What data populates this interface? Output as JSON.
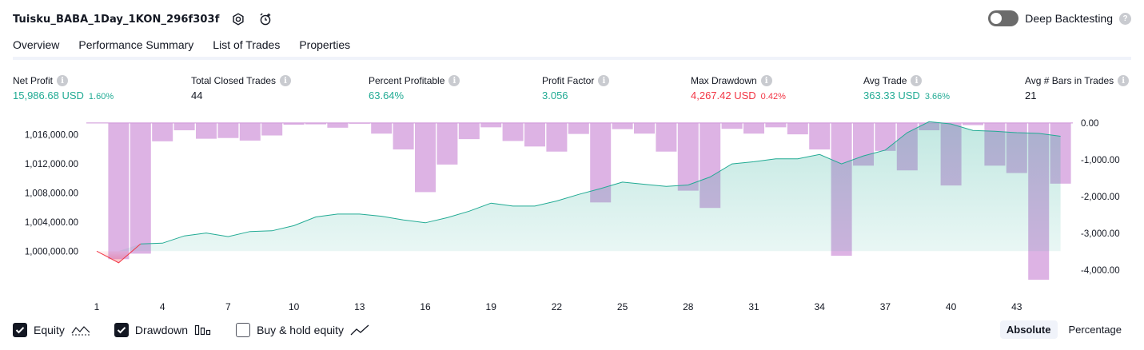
{
  "header": {
    "title": "Tuisku_BABA_1Day_1KON_296f303f",
    "deep_backtesting_label": "Deep Backtesting",
    "deep_backtesting_enabled": false
  },
  "tabs": [
    {
      "label": "Overview",
      "active": true
    },
    {
      "label": "Performance Summary",
      "active": false
    },
    {
      "label": "List of Trades",
      "active": false
    },
    {
      "label": "Properties",
      "active": false
    }
  ],
  "stats": [
    {
      "label": "Net Profit",
      "value": "15,986.68 USD",
      "pct": "1.60%",
      "color": "#22ab94"
    },
    {
      "label": "Total Closed Trades",
      "value": "44",
      "pct": "",
      "color": "#131722"
    },
    {
      "label": "Percent Profitable",
      "value": "63.64%",
      "pct": "",
      "color": "#22ab94"
    },
    {
      "label": "Profit Factor",
      "value": "3.056",
      "pct": "",
      "color": "#22ab94"
    },
    {
      "label": "Max Drawdown",
      "value": "4,267.42 USD",
      "pct": "0.42%",
      "color": "#f23645"
    },
    {
      "label": "Avg Trade",
      "value": "363.33 USD",
      "pct": "3.66%",
      "color": "#22ab94"
    },
    {
      "label": "Avg # Bars in Trades",
      "value": "21",
      "pct": "",
      "color": "#131722"
    }
  ],
  "legend": {
    "equity_label": "Equity",
    "equity_checked": true,
    "drawdown_label": "Drawdown",
    "drawdown_checked": true,
    "buyhold_label": "Buy & hold equity",
    "buyhold_checked": false
  },
  "scale_toggle": {
    "absolute_label": "Absolute",
    "percentage_label": "Percentage",
    "selected": "Absolute"
  },
  "chart_data": {
    "type": "area",
    "x_tick_labels": [
      "1",
      "4",
      "7",
      "10",
      "13",
      "16",
      "19",
      "22",
      "25",
      "28",
      "31",
      "34",
      "37",
      "40",
      "43"
    ],
    "left_axis": {
      "ticks": [
        "1,000,000.00",
        "1,004,000.00",
        "1,008,000.00",
        "1,012,000.00",
        "1,016,000.00"
      ],
      "range": [
        998000,
        1018000
      ]
    },
    "right_axis": {
      "ticks": [
        "0.00",
        "-1,000.00",
        "-2,000.00",
        "-3,000.00",
        "-4,000.00"
      ],
      "range": [
        -4800,
        300
      ]
    },
    "series": [
      {
        "name": "Equity",
        "color": "#22ab94",
        "x": [
          1,
          2,
          3,
          4,
          5,
          6,
          7,
          8,
          9,
          10,
          11,
          12,
          13,
          14,
          15,
          16,
          17,
          18,
          19,
          20,
          21,
          22,
          23,
          24,
          25,
          26,
          27,
          28,
          29,
          30,
          31,
          32,
          33,
          34,
          35,
          36,
          37,
          38,
          39,
          40,
          41,
          42,
          43,
          44,
          45
        ],
        "values": [
          1000000,
          998400,
          1001000,
          1001100,
          1002100,
          1002500,
          1002000,
          1002700,
          1002800,
          1003500,
          1004700,
          1005100,
          1005100,
          1004800,
          1004300,
          1003900,
          1004600,
          1005500,
          1006600,
          1006200,
          1006200,
          1006900,
          1007800,
          1008600,
          1009500,
          1009200,
          1008900,
          1009100,
          1010200,
          1012000,
          1012300,
          1012700,
          1012700,
          1013300,
          1012000,
          1013100,
          1013900,
          1016300,
          1017800,
          1017500,
          1016600,
          1016500,
          1016300,
          1016200,
          1015800
        ]
      },
      {
        "name": "Drawdown",
        "color": "#ce93d8",
        "x": [
          2,
          3,
          4,
          5,
          6,
          7,
          8,
          9,
          10,
          11,
          12,
          13,
          14,
          15,
          16,
          17,
          18,
          19,
          20,
          21,
          22,
          23,
          24,
          25,
          26,
          27,
          28,
          29,
          30,
          31,
          32,
          33,
          34,
          35,
          36,
          37,
          38,
          39,
          40,
          41,
          42,
          43,
          44,
          45
        ],
        "values": [
          -3700,
          -3550,
          -500,
          -200,
          -430,
          -410,
          -480,
          -340,
          -50,
          -40,
          -130,
          -20,
          -290,
          -720,
          -1880,
          -1130,
          -440,
          -120,
          -490,
          -640,
          -780,
          -300,
          -2160,
          -170,
          -290,
          -780,
          -1840,
          -2310,
          -160,
          -290,
          -120,
          -310,
          -720,
          -3610,
          -1160,
          -760,
          -1290,
          -200,
          -1700,
          -60,
          -1160,
          -1360,
          -4260,
          -1650
        ]
      }
    ]
  }
}
